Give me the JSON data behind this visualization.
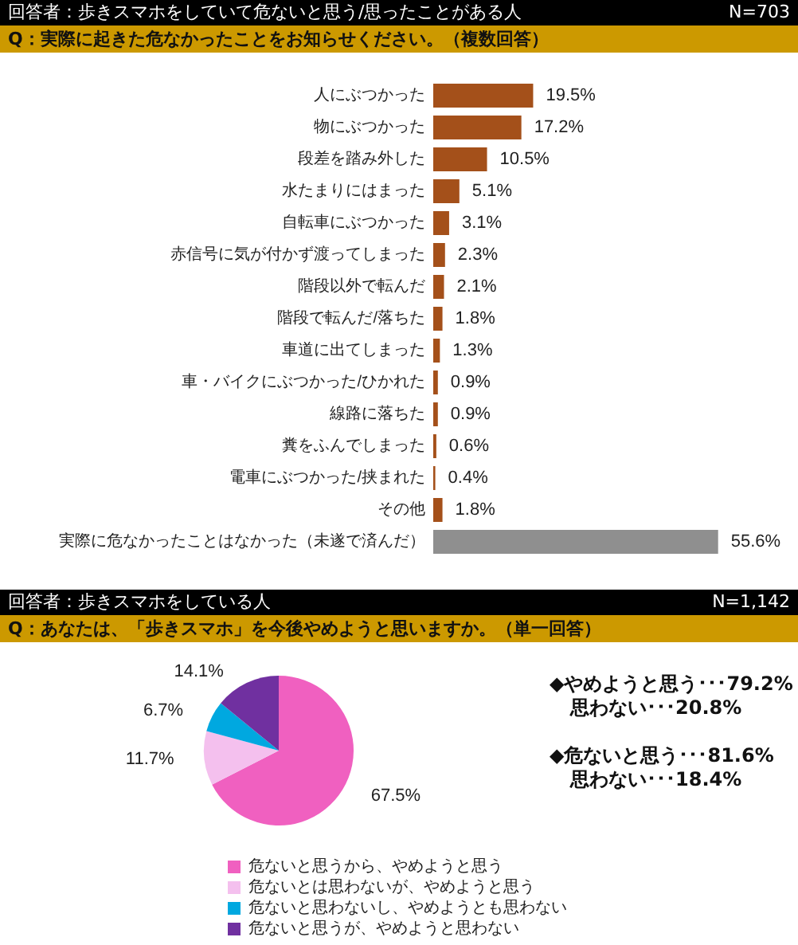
{
  "chart_data": [
    {
      "type": "bar",
      "orientation": "horizontal",
      "title": "回答者：歩きスマホをしていて危ないと思う/思ったことがある人",
      "subtitle": "Q：実際に起きた危なかったことをお知らせください。（複数回答）",
      "annotations": [
        "N=703"
      ],
      "categories": [
        "人にぶつかった",
        "物にぶつかった",
        "段差を踏み外した",
        "水たまりにはまった",
        "自転車にぶつかった",
        "赤信号に気が付かず渡ってしまった",
        "階段以外で転んだ",
        "階段で転んだ/落ちた",
        "車道に出てしまった",
        "車・バイクにぶつかった/ひかれた",
        "線路に落ちた",
        "糞をふんでしまった",
        "電車にぶつかった/挟まれた",
        "その他",
        "実際に危なかったことはなかった（未遂で済んだ）"
      ],
      "values": [
        19.5,
        17.2,
        10.5,
        5.1,
        3.1,
        2.3,
        2.1,
        1.8,
        1.3,
        0.9,
        0.9,
        0.6,
        0.4,
        1.8,
        55.6
      ],
      "colors": [
        "#a4501a",
        "#a4501a",
        "#a4501a",
        "#a4501a",
        "#a4501a",
        "#a4501a",
        "#a4501a",
        "#a4501a",
        "#a4501a",
        "#a4501a",
        "#a4501a",
        "#a4501a",
        "#a4501a",
        "#a4501a",
        "#8f8f8f"
      ],
      "value_labels": [
        "19.5%",
        "17.2%",
        "10.5%",
        "5.1%",
        "3.1%",
        "2.3%",
        "2.1%",
        "1.8%",
        "1.3%",
        "0.9%",
        "0.9%",
        "0.6%",
        "0.4%",
        "1.8%",
        "55.6%"
      ],
      "tick_labels": "y"
    },
    {
      "type": "pie",
      "title": "回答者：歩きスマホをしている人",
      "subtitle": "Q：あなたは、「歩きスマホ」を今後やめようと思いますか。（単一回答）",
      "annotations": [
        "N=1,142",
        "◆やめようと思う･･･79.2%",
        "思わない･･･20.8%",
        "◆危ないと思う･･･81.6%",
        "思わない･･･18.4%"
      ],
      "categories": [
        "危ないと思うから、やめようと思う",
        "危ないとは思わないが、やめようと思う",
        "危ないと思わないし、やめようとも思わない",
        "危ないと思うが、やめようと思わない"
      ],
      "values": [
        67.5,
        11.7,
        6.7,
        14.1
      ],
      "colors": [
        "#f060c0",
        "#f4c0ee",
        "#00a8e0",
        "#7030a0"
      ],
      "value_labels": [
        "67.5%",
        "11.7%",
        "6.7%",
        "14.1%"
      ],
      "legend": "bottom"
    }
  ]
}
